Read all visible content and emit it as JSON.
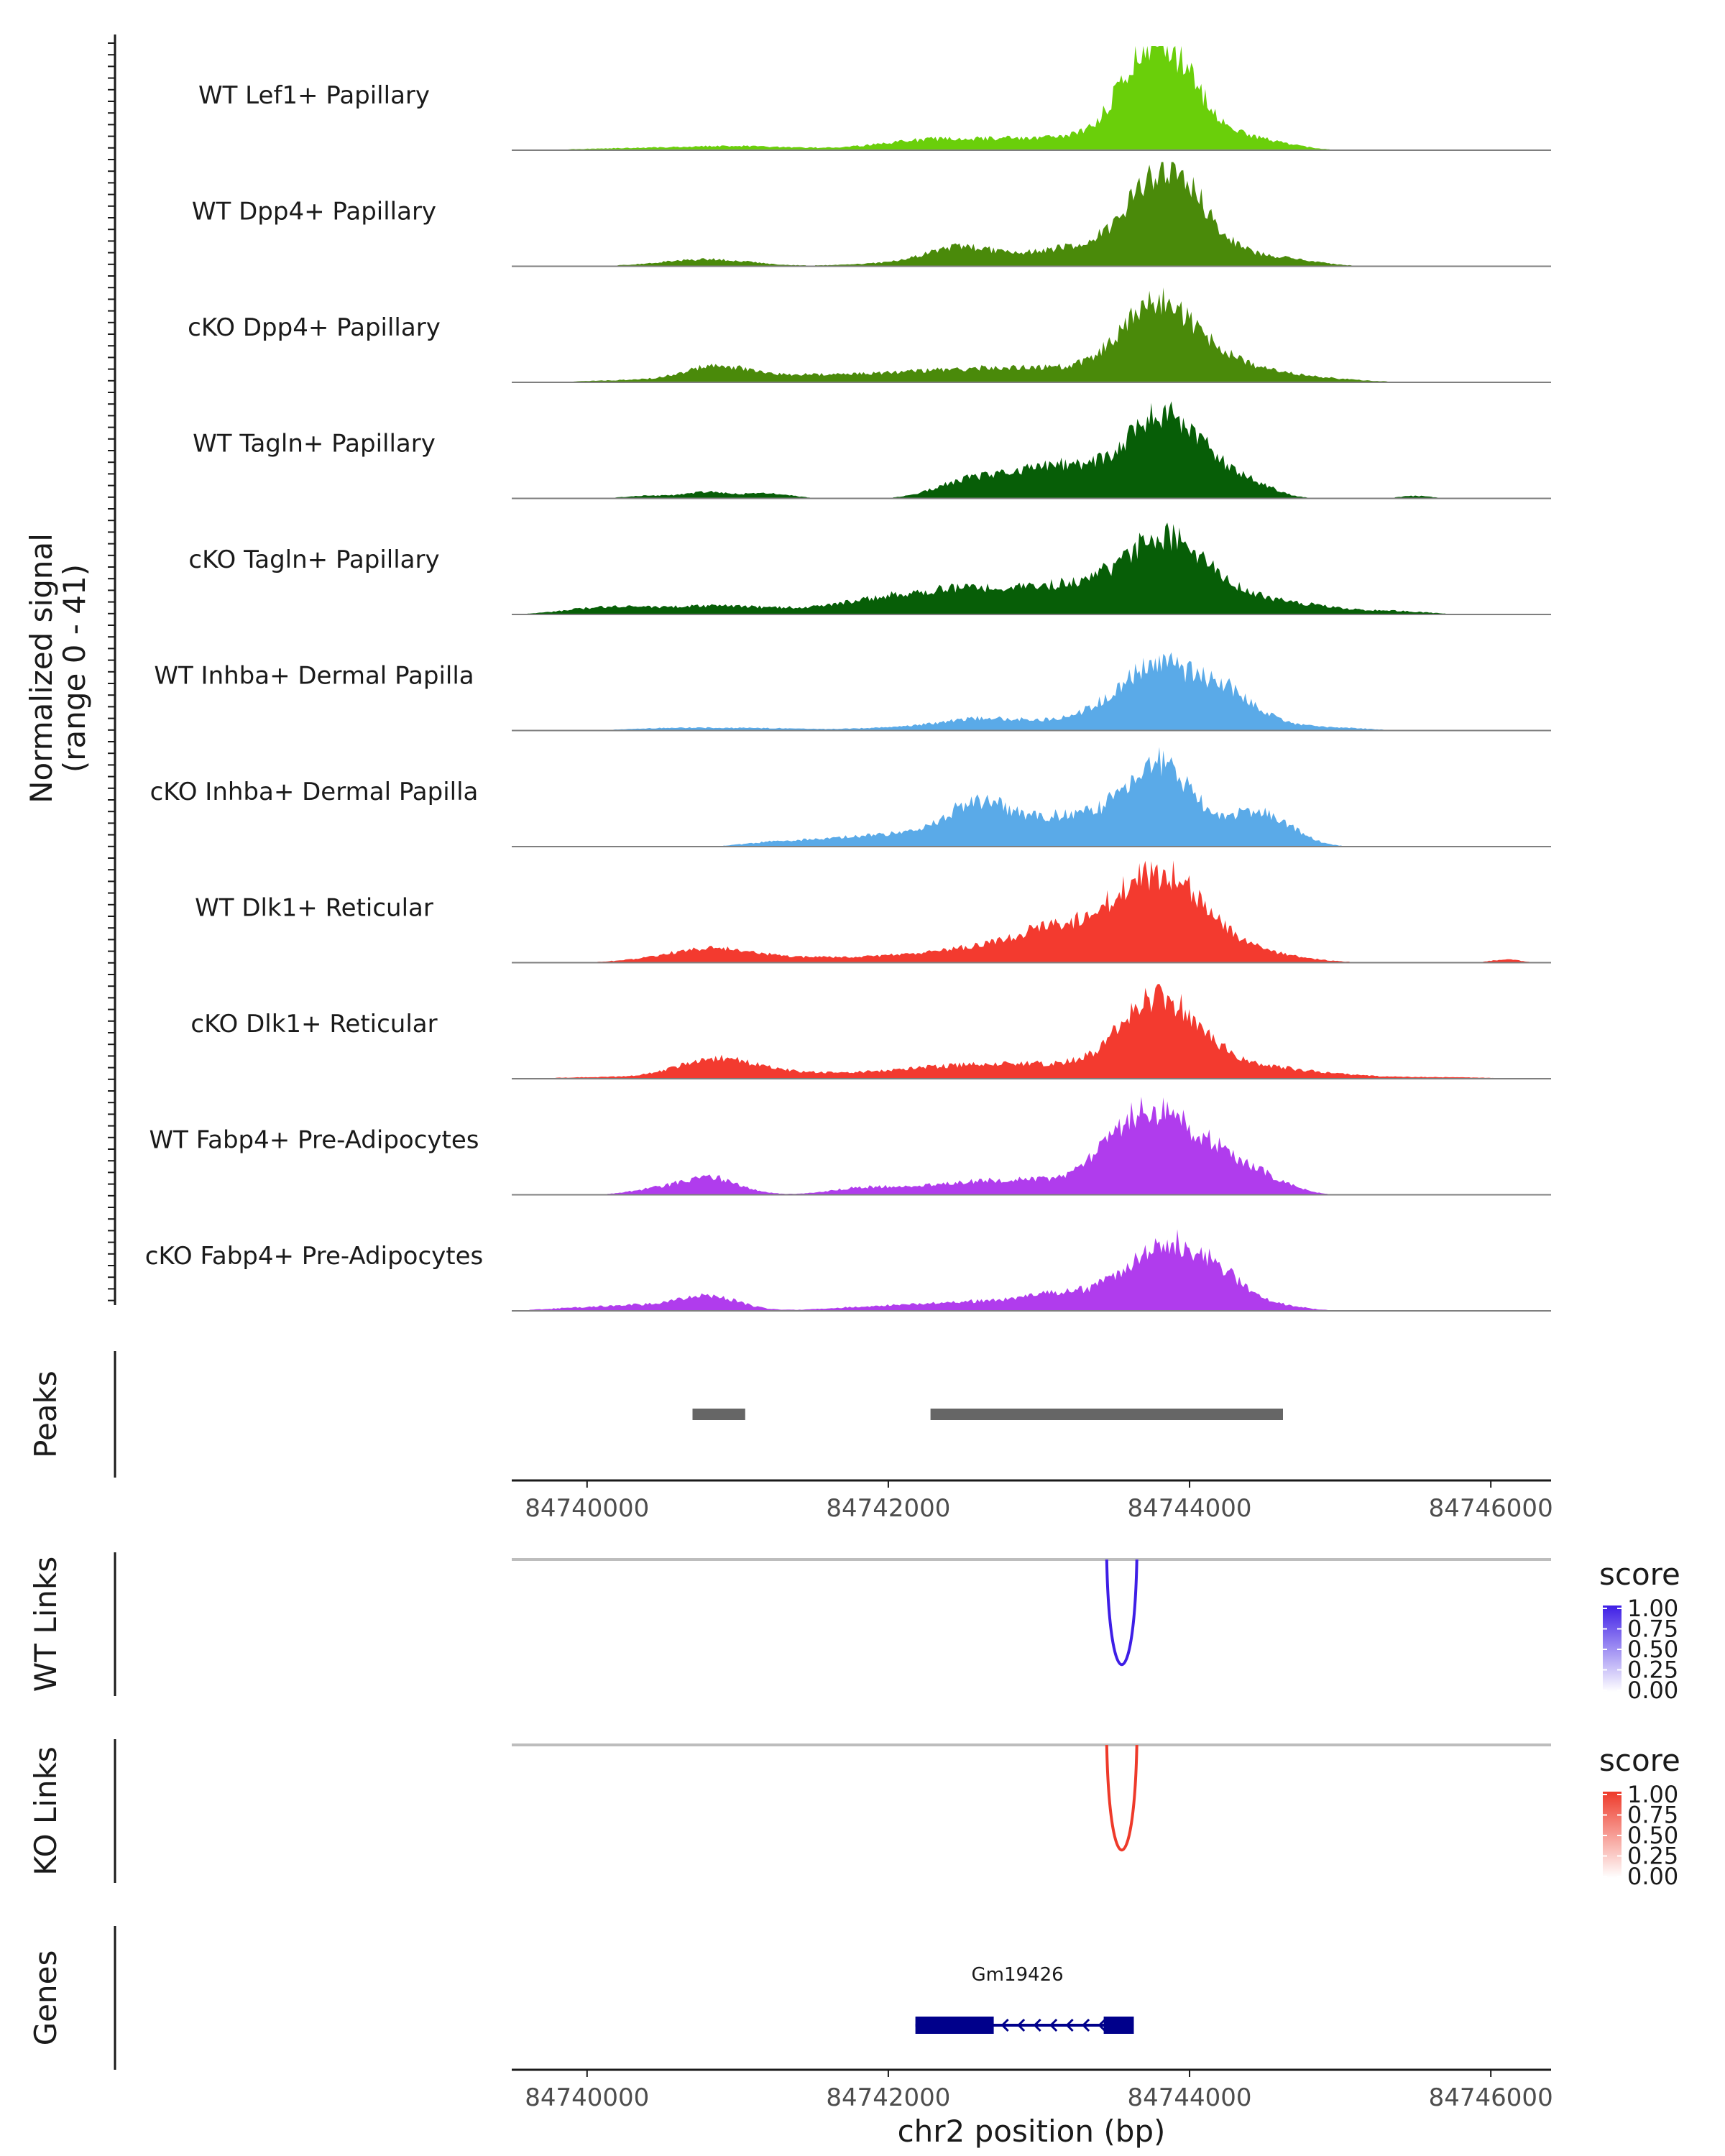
{
  "chart_data": {
    "type": "genome-track",
    "chromosome": "chr2",
    "xlabel": "chr2 position (bp)",
    "xlim": [
      84739500,
      84746400
    ],
    "x_ticks": [
      "84740000",
      "84742000",
      "84744000",
      "84746000"
    ],
    "x_tick_values": [
      84740000,
      84742000,
      84744000,
      84746000
    ],
    "coverage": {
      "ylabel_line1": "Normalized signal",
      "ylabel_line2": "(range 0 - 41)",
      "ylim": [
        0,
        41
      ],
      "tracks": [
        {
          "name": "WT Lef1+ Papillary",
          "color": "#6ACF0A",
          "peaks": [
            [
              84740200,
              0.6,
              300
            ],
            [
              84740900,
              1.3,
              350
            ],
            [
              84741400,
              0.5,
              500
            ],
            [
              84742200,
              2.5,
              300
            ],
            [
              84742700,
              3,
              400
            ],
            [
              84743200,
              3,
              350
            ],
            [
              84743500,
              2.5,
              200
            ],
            [
              84743830,
              36,
              220
            ],
            [
              84743650,
              8,
              150
            ],
            [
              84744200,
              3.5,
              300
            ],
            [
              84744500,
              2,
              200
            ]
          ]
        },
        {
          "name": "WT Dpp4+ Papillary",
          "color": "#4A8A0A",
          "peaks": [
            [
              84740600,
              1.2,
              250
            ],
            [
              84740900,
              2,
              250
            ],
            [
              84742000,
              0.8,
              300
            ],
            [
              84742450,
              5,
              200
            ],
            [
              84742900,
              4,
              450
            ],
            [
              84743400,
              5,
              300
            ],
            [
              84743850,
              36,
              230
            ],
            [
              84744300,
              4,
              300
            ],
            [
              84744700,
              1.2,
              200
            ]
          ]
        },
        {
          "name": "cKO Dpp4+ Papillary",
          "color": "#4A8A0A",
          "peaks": [
            [
              84740300,
              0.8,
              300
            ],
            [
              84740850,
              5,
              200
            ],
            [
              84741200,
              2,
              400
            ],
            [
              84741800,
              1.5,
              400
            ],
            [
              84742400,
              3,
              450
            ],
            [
              84742900,
              3.5,
              400
            ],
            [
              84743400,
              2.5,
              300
            ],
            [
              84743800,
              28,
              250
            ],
            [
              84744250,
              6,
              300
            ],
            [
              84744800,
              1.5,
              300
            ]
          ]
        },
        {
          "name": "WT Tagln+ Papillary",
          "color": "#075E07",
          "peaks": [
            [
              84740400,
              1,
              150
            ],
            [
              84740800,
              2.5,
              150
            ],
            [
              84741200,
              2,
              150
            ],
            [
              84742500,
              6,
              200
            ],
            [
              84742800,
              4,
              200
            ],
            [
              84743150,
              12,
              250
            ],
            [
              84743480,
              4,
              150
            ],
            [
              84743830,
              32,
              220
            ],
            [
              84744200,
              7,
              200
            ],
            [
              84744450,
              3,
              150
            ],
            [
              84745500,
              1,
              100
            ]
          ]
        },
        {
          "name": "cKO Tagln+ Papillary",
          "color": "#075E07",
          "peaks": [
            [
              84740100,
              2.5,
              250
            ],
            [
              84740600,
              1.5,
              300
            ],
            [
              84741000,
              2.5,
              350
            ],
            [
              84741900,
              3.5,
              350
            ],
            [
              84742400,
              6,
              400
            ],
            [
              84742900,
              6,
              400
            ],
            [
              84743400,
              8,
              300
            ],
            [
              84743850,
              26,
              250
            ],
            [
              84744300,
              6,
              300
            ],
            [
              84744800,
              2.5,
              300
            ],
            [
              84745400,
              1,
              200
            ]
          ]
        },
        {
          "name": "WT Inhba+ Dermal Papilla",
          "color": "#5AAAE8",
          "peaks": [
            [
              84740600,
              1,
              300
            ],
            [
              84741200,
              0.8,
              300
            ],
            [
              84742100,
              1.2,
              300
            ],
            [
              84742600,
              3.5,
              250
            ],
            [
              84743100,
              3,
              350
            ],
            [
              84743450,
              2.5,
              200
            ],
            [
              84743800,
              25,
              250
            ],
            [
              84744250,
              12,
              180
            ],
            [
              84744550,
              2.5,
              200
            ],
            [
              84745000,
              1,
              200
            ]
          ]
        },
        {
          "name": "cKO Inhba+ Dermal Papilla",
          "color": "#5AAAE8",
          "peaks": [
            [
              84741250,
              1.5,
              200
            ],
            [
              84741800,
              3.5,
              300
            ],
            [
              84742300,
              4,
              250
            ],
            [
              84742600,
              12,
              200
            ],
            [
              84742900,
              6,
              300
            ],
            [
              84743250,
              8,
              250
            ],
            [
              84743800,
              33,
              230
            ],
            [
              84744450,
              13,
              180
            ],
            [
              84744700,
              2,
              150
            ]
          ]
        },
        {
          "name": "WT Dlk1+ Reticular",
          "color": "#F33A2F",
          "peaks": [
            [
              84740600,
              1.5,
              300
            ],
            [
              84740850,
              4,
              250
            ],
            [
              84741300,
              1.5,
              400
            ],
            [
              84742300,
              2.5,
              500
            ],
            [
              84742800,
              4,
              400
            ],
            [
              84743200,
              11,
              300
            ],
            [
              84743600,
              12,
              200
            ],
            [
              84743900,
              28,
              250
            ],
            [
              84744400,
              4,
              300
            ],
            [
              84746100,
              1.2,
              100
            ]
          ]
        },
        {
          "name": "cKO Dlk1+ Reticular",
          "color": "#F33A2F",
          "peaks": [
            [
              84740100,
              0.6,
              300
            ],
            [
              84740850,
              7,
              250
            ],
            [
              84741300,
              2,
              400
            ],
            [
              84742300,
              3,
              450
            ],
            [
              84742800,
              3.5,
              400
            ],
            [
              84743300,
              3,
              300
            ],
            [
              84743800,
              30,
              250
            ],
            [
              84744300,
              5,
              300
            ],
            [
              84744800,
              1.8,
              300
            ],
            [
              84745600,
              0.6,
              400
            ]
          ]
        },
        {
          "name": "WT Fabp4+ Pre-Adipocytes",
          "color": "#B03CED",
          "peaks": [
            [
              84740400,
              1.5,
              150
            ],
            [
              84740800,
              7,
              200
            ],
            [
              84741800,
              2,
              200
            ],
            [
              84742200,
              2,
              300
            ],
            [
              84742600,
              3,
              300
            ],
            [
              84743000,
              4,
              300
            ],
            [
              84743550,
              10,
              200
            ],
            [
              84743850,
              28,
              300
            ],
            [
              84744350,
              6,
              200
            ],
            [
              84744600,
              2,
              150
            ]
          ]
        },
        {
          "name": "cKO Fabp4+ Pre-Adipocytes",
          "color": "#B03CED",
          "peaks": [
            [
              84739900,
              1,
              200
            ],
            [
              84740300,
              2,
              200
            ],
            [
              84740800,
              6,
              200
            ],
            [
              84741900,
              1.5,
              300
            ],
            [
              84742500,
              3,
              300
            ],
            [
              84743200,
              7,
              300
            ],
            [
              84743500,
              2,
              150
            ],
            [
              84743850,
              26,
              220
            ],
            [
              84744200,
              10,
              150
            ],
            [
              84744500,
              3,
              200
            ]
          ]
        }
      ]
    },
    "peaks_track": {
      "label": "Peaks",
      "color": "#666666",
      "regions": [
        [
          84740700,
          84741050
        ],
        [
          84742280,
          84744620
        ]
      ]
    },
    "links_tracks": [
      {
        "label": "WT Links",
        "color": "#3E1EE6",
        "start": 84743450,
        "end": 84743650,
        "score": 1.0,
        "legend_title": "score",
        "legend_ticks": [
          "1.00",
          "0.75",
          "0.50",
          "0.25",
          "0.00"
        ]
      },
      {
        "label": "KO Links",
        "color": "#EE3A2A",
        "start": 84743450,
        "end": 84743650,
        "score": 1.0,
        "legend_title": "score",
        "legend_ticks": [
          "1.00",
          "0.75",
          "0.50",
          "0.25",
          "0.00"
        ]
      }
    ],
    "genes_track": {
      "label": "Genes",
      "color": "#00008B",
      "genes": [
        {
          "name": "Gm19426",
          "start": 84742180,
          "end": 84743630,
          "strand": "-",
          "exons": [
            [
              84742180,
              84742700
            ],
            [
              84743430,
              84743630
            ]
          ]
        }
      ]
    }
  }
}
